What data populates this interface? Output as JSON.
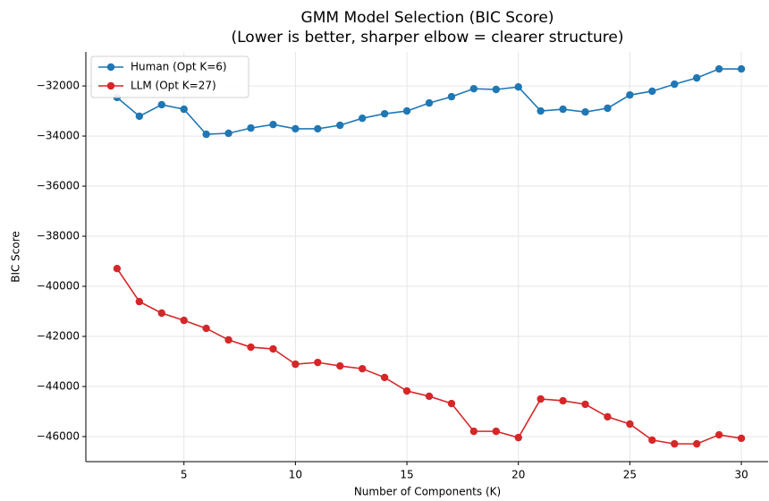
{
  "chart_data": {
    "type": "line",
    "title": "GMM Model Selection (BIC Score)",
    "subtitle": "(Lower is better, sharper elbow = clearer structure)",
    "x_label": "Number of Components (K)",
    "y_label": "BIC Score",
    "x": [
      2,
      3,
      4,
      5,
      6,
      7,
      8,
      9,
      10,
      11,
      12,
      13,
      14,
      15,
      16,
      17,
      18,
      19,
      20,
      21,
      22,
      23,
      24,
      25,
      26,
      27,
      28,
      29,
      30
    ],
    "series": [
      {
        "name": "Human (Opt K=6)",
        "color": "#1f77b4",
        "values": [
          -32460,
          -33210,
          -32750,
          -32930,
          -33930,
          -33890,
          -33680,
          -33540,
          -33710,
          -33710,
          -33570,
          -33290,
          -33110,
          -33000,
          -32680,
          -32430,
          -32110,
          -32140,
          -32040,
          -33000,
          -32930,
          -33040,
          -32890,
          -32360,
          -32210,
          -31930,
          -31680,
          -31320,
          -31320
        ]
      },
      {
        "name": "LLM (Opt K=27)",
        "color": "#d62728",
        "values": [
          -39290,
          -40610,
          -41070,
          -41360,
          -41680,
          -42140,
          -42430,
          -42500,
          -43110,
          -43040,
          -43180,
          -43290,
          -43640,
          -44180,
          -44390,
          -44680,
          -45790,
          -45790,
          -46040,
          -44500,
          -44570,
          -44710,
          -45210,
          -45500,
          -46140,
          -46290,
          -46290,
          -45930,
          -46070
        ]
      }
    ],
    "xlim": [
      0.6,
      31.2
    ],
    "ylim": [
      -47000,
      -30640
    ],
    "xticks": [
      5,
      10,
      15,
      20,
      25,
      30
    ],
    "yticks": [
      {
        "value": -46000,
        "label": "−46000"
      },
      {
        "value": -44000,
        "label": "−44000"
      },
      {
        "value": -42000,
        "label": "−42000"
      },
      {
        "value": -40000,
        "label": "−40000"
      },
      {
        "value": -38000,
        "label": "−38000"
      },
      {
        "value": -36000,
        "label": "−36000"
      },
      {
        "value": -34000,
        "label": "−34000"
      },
      {
        "value": -32000,
        "label": "−32000"
      }
    ],
    "grid": true,
    "legend": "upper left"
  }
}
